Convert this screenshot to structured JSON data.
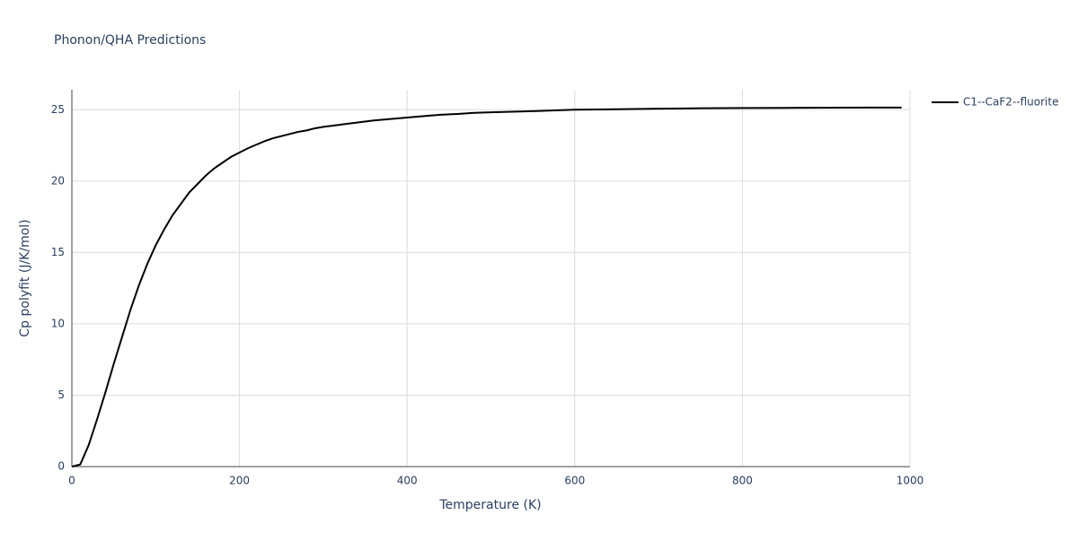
{
  "chart_data": {
    "type": "line",
    "title": "Phonon/QHA Predictions",
    "x_label": "Temperature (K)",
    "y_label": "Cp polyfit (J/K/mol)",
    "x": [
      0,
      10,
      20,
      30,
      40,
      50,
      60,
      70,
      80,
      90,
      100,
      110,
      120,
      130,
      140,
      150,
      160,
      170,
      180,
      190,
      200,
      210,
      220,
      230,
      240,
      250,
      260,
      270,
      280,
      290,
      300,
      320,
      340,
      360,
      380,
      400,
      420,
      440,
      460,
      480,
      500,
      550,
      600,
      650,
      700,
      750,
      800,
      850,
      900,
      950,
      990
    ],
    "series": [
      {
        "name": "C1--CaF2--fluorite",
        "color": "#000000",
        "values": [
          0,
          0.15,
          1.5,
          3.3,
          5.2,
          7.2,
          9.1,
          11.0,
          12.7,
          14.2,
          15.5,
          16.6,
          17.6,
          18.4,
          19.2,
          19.8,
          20.4,
          20.9,
          21.3,
          21.7,
          22.0,
          22.3,
          22.55,
          22.8,
          23.0,
          23.15,
          23.3,
          23.45,
          23.55,
          23.7,
          23.8,
          23.95,
          24.1,
          24.25,
          24.35,
          24.45,
          24.55,
          24.65,
          24.7,
          24.78,
          24.82,
          24.9,
          25.0,
          25.03,
          25.07,
          25.1,
          25.12,
          25.13,
          25.14,
          25.15,
          25.15
        ]
      }
    ],
    "xlim": [
      0,
      1000
    ],
    "xticks": [
      0,
      200,
      400,
      600,
      800,
      1000
    ],
    "ylim": [
      0,
      26.4
    ],
    "yticks": [
      0,
      5,
      10,
      15,
      20,
      25
    ],
    "grid": true,
    "legend": "right"
  }
}
